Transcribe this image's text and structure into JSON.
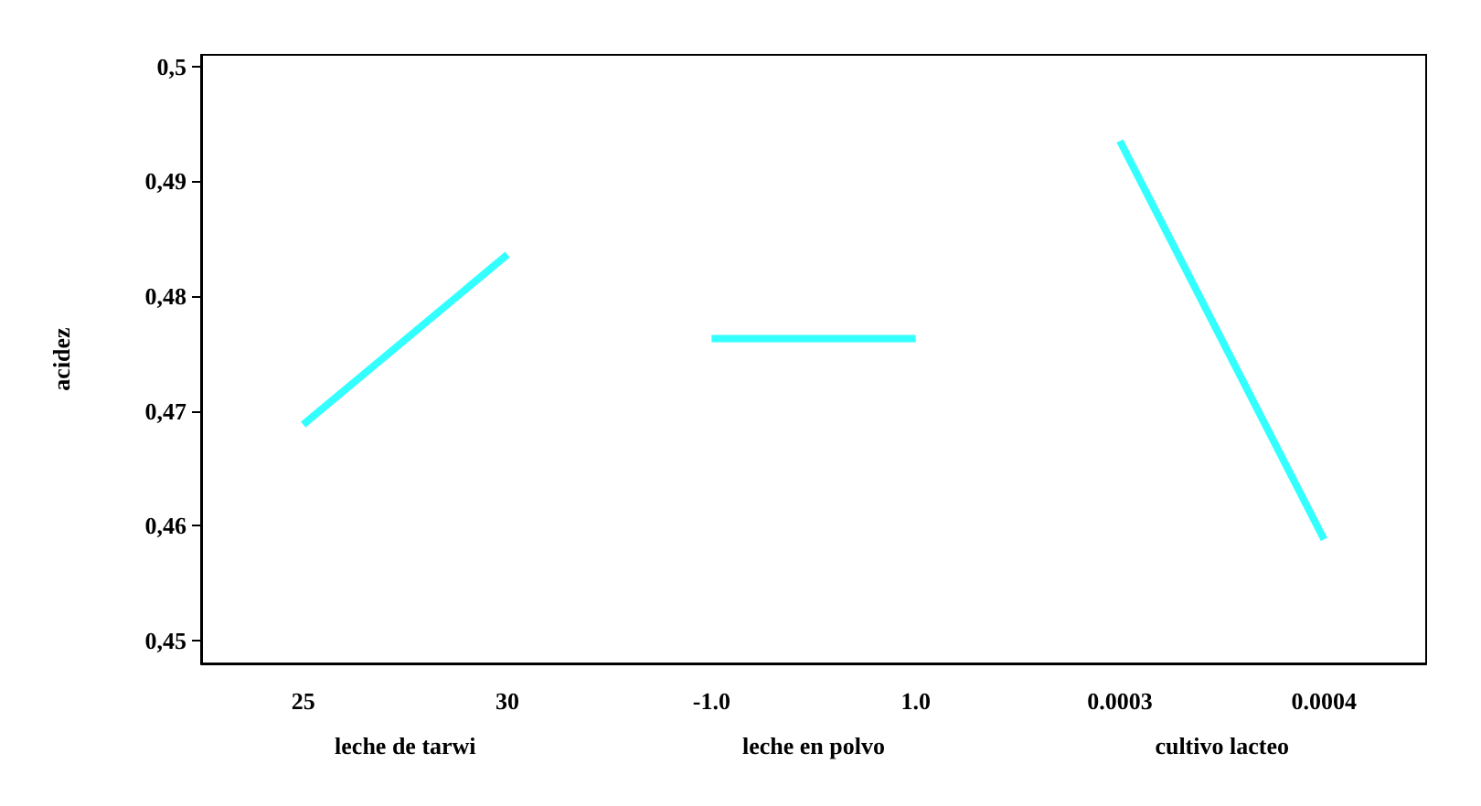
{
  "chart_data": {
    "type": "line",
    "ylabel": "acidez",
    "categories": [
      "25",
      "30",
      "-1.0",
      "1.0",
      "0.0003",
      "0.0004"
    ],
    "series": [
      {
        "color": "#33ffff",
        "values": [
          0.4688,
          0.4836,
          null,
          null,
          null,
          null
        ]
      },
      {
        "color": "#33ffff",
        "values": [
          null,
          null,
          0.4763,
          0.4763,
          null,
          null
        ]
      },
      {
        "color": "#33ffff",
        "values": [
          null,
          null,
          null,
          null,
          0.4935,
          0.4588
        ]
      }
    ],
    "ylim": [
      0.448,
      0.501
    ],
    "yticks": [
      {
        "value": 0.45,
        "label": "0,45"
      },
      {
        "value": 0.46,
        "label": "0,46"
      },
      {
        "value": 0.47,
        "label": "0,47"
      },
      {
        "value": 0.48,
        "label": "0,48"
      },
      {
        "value": 0.49,
        "label": "0,49"
      },
      {
        "value": 0.5,
        "label": "0,5"
      }
    ],
    "annotations": [
      "leche de tarwi",
      "leche en polvo",
      "cultivo lacteo"
    ],
    "marker": "none",
    "line_style": "solid",
    "grid": false,
    "legend": false
  }
}
